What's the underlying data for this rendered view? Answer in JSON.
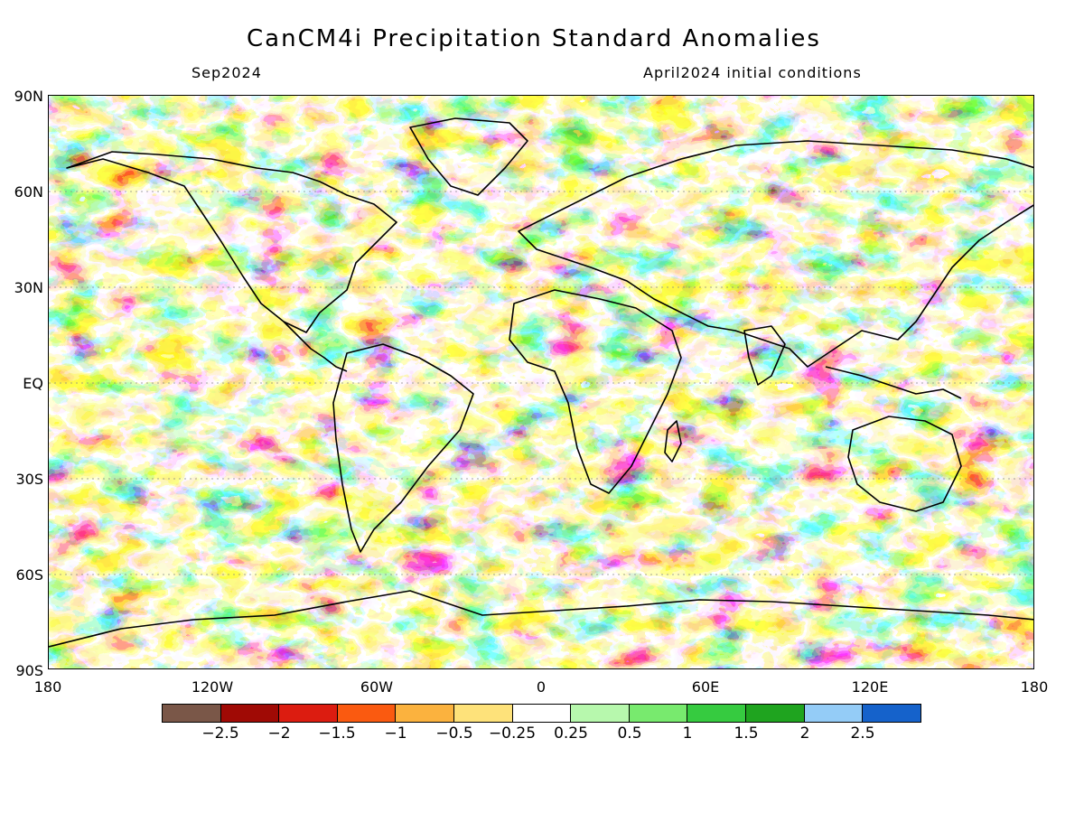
{
  "header": {
    "title": "CanCM4i Precipitation Standard Anomalies",
    "valid_month": "Sep2024",
    "init_conditions": "April2024 initial conditions"
  },
  "axes": {
    "lat_labels": [
      "90N",
      "60N",
      "30N",
      "EQ",
      "30S",
      "60S",
      "90S"
    ],
    "lon_labels": [
      "180",
      "120W",
      "60W",
      "0",
      "60E",
      "120E",
      "180"
    ]
  },
  "colorbar": {
    "colors": [
      "#7a5748",
      "#a00a05",
      "#dc1c10",
      "#fa5a10",
      "#fbb23e",
      "#fee27a",
      "#ffffff",
      "#b7f8ad",
      "#78ea6e",
      "#36cb40",
      "#1fa41f",
      "#94ccf7",
      "#1562cb"
    ],
    "labels": [
      "−2.5",
      "−2",
      "−1.5",
      "−1",
      "−0.5",
      "−0.25",
      "0.25",
      "0.5",
      "1",
      "1.5",
      "2",
      "2.5"
    ]
  }
}
